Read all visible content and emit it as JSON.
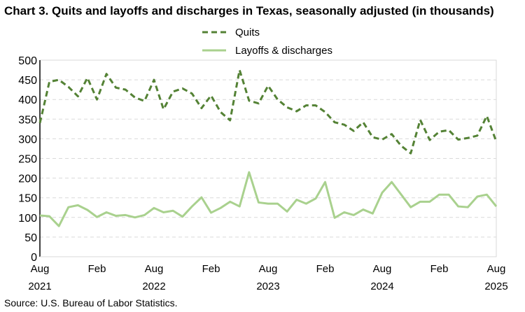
{
  "chart_data": {
    "type": "line",
    "title": "Chart 3. Quits and layoffs and discharges in Texas, seasonally adjusted (in thousands)",
    "source": "Source: U.S. Bureau of Labor Statistics.",
    "x_start": "2021-08",
    "x_end": "2025-08",
    "x_tick_labels": [
      {
        "month": "Aug",
        "year": "2021"
      },
      {
        "month": "Feb",
        "year": ""
      },
      {
        "month": "Aug",
        "year": "2022"
      },
      {
        "month": "Feb",
        "year": ""
      },
      {
        "month": "Aug",
        "year": "2023"
      },
      {
        "month": "Feb",
        "year": ""
      },
      {
        "month": "Aug",
        "year": "2024"
      },
      {
        "month": "Feb",
        "year": ""
      },
      {
        "month": "Aug",
        "year": "2025"
      }
    ],
    "ylim": [
      0,
      500
    ],
    "y_ticks": [
      0,
      50,
      100,
      150,
      200,
      250,
      300,
      350,
      400,
      450,
      500
    ],
    "grid": true,
    "legend": "top",
    "series": [
      {
        "name": "Quits",
        "color": "#548235",
        "style": "dashed",
        "values": [
          340,
          445,
          450,
          432,
          408,
          455,
          400,
          465,
          430,
          425,
          405,
          396,
          450,
          375,
          420,
          428,
          415,
          378,
          410,
          368,
          347,
          475,
          397,
          390,
          435,
          400,
          380,
          370,
          385,
          385,
          368,
          342,
          336,
          320,
          342,
          304,
          298,
          312,
          282,
          263,
          348,
          297,
          318,
          322,
          298,
          302,
          308,
          358,
          293
        ]
      },
      {
        "name": "Layoffs & discharges",
        "color": "#a9d18e",
        "style": "solid",
        "values": [
          105,
          103,
          78,
          126,
          131,
          119,
          101,
          113,
          104,
          106,
          100,
          106,
          124,
          113,
          117,
          102,
          128,
          151,
          112,
          124,
          140,
          128,
          215,
          138,
          135,
          135,
          115,
          145,
          135,
          148,
          190,
          99,
          113,
          106,
          120,
          110,
          163,
          190,
          158,
          126,
          140,
          140,
          158,
          158,
          128,
          126,
          153,
          158,
          128
        ]
      }
    ]
  }
}
